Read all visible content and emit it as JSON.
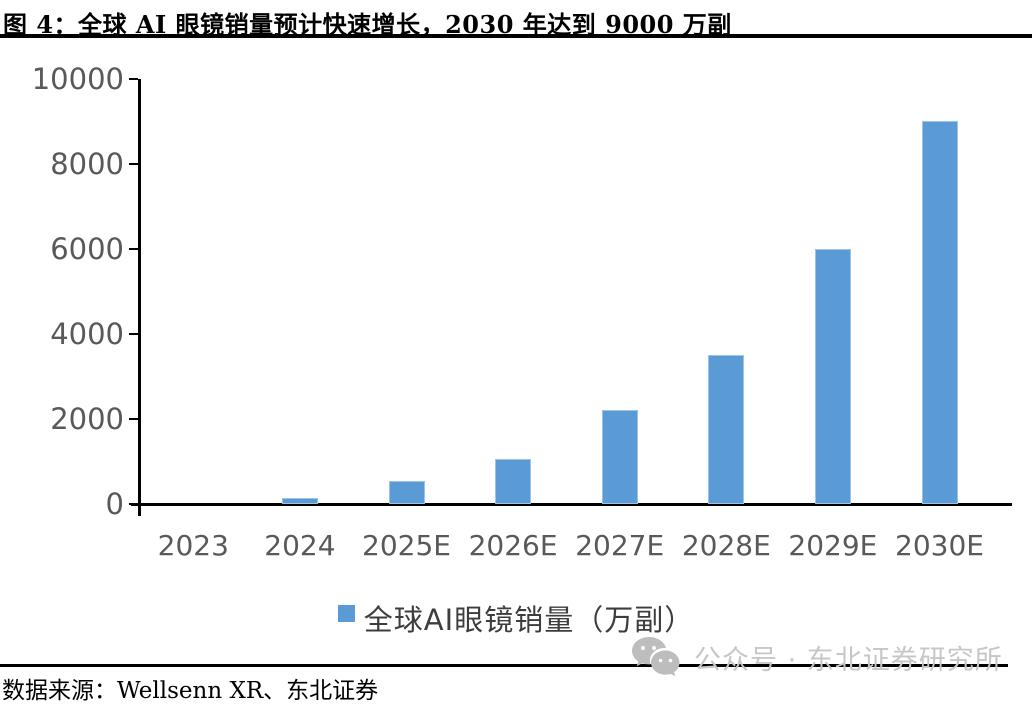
{
  "figure": {
    "title": "图 4：全球 AI 眼镜销量预计快速增长，2030 年达到 9000 万副",
    "source": "数据来源：Wellsenn XR、东北证券",
    "watermark": "公众号 · 东北证券研究所",
    "watermark_icon": "wechat-icon"
  },
  "chart_data": {
    "type": "bar",
    "categories": [
      "2023",
      "2024",
      "2025E",
      "2026E",
      "2027E",
      "2028E",
      "2029E",
      "2030E"
    ],
    "values": [
      0,
      150,
      550,
      1050,
      2200,
      3500,
      6000,
      9000
    ],
    "series_name": "全球AI眼镜销量（万副）",
    "title": "",
    "xlabel": "",
    "ylabel": "",
    "ylim": [
      0,
      10000
    ],
    "yticks": [
      0,
      2000,
      4000,
      6000,
      8000,
      10000
    ],
    "bar_color": "#5B9BD5",
    "bar_border_color": "#9DC3E6",
    "axis_color": "#000000",
    "tick_label_color": "#595959",
    "grid": false,
    "legend_position": "bottom"
  }
}
